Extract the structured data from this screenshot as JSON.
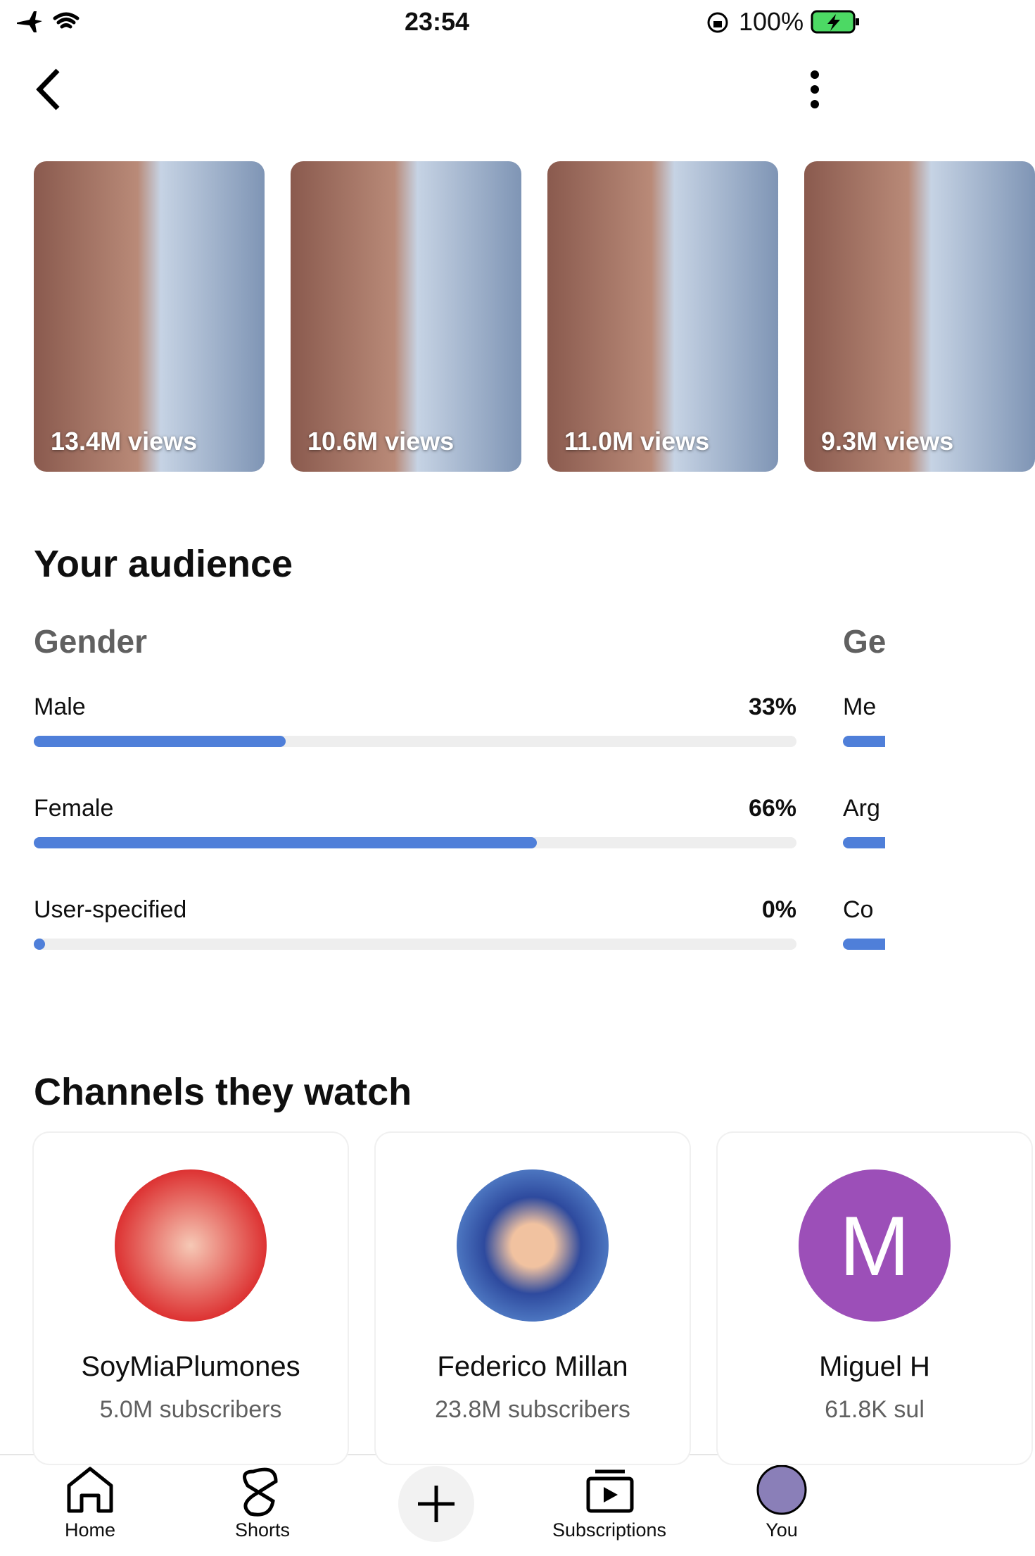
{
  "status_bar": {
    "time": "23:54",
    "battery": "100%"
  },
  "videos": [
    {
      "views": "13.4M views"
    },
    {
      "views": "10.6M views"
    },
    {
      "views": "11.0M views"
    },
    {
      "views": "9.3M views"
    }
  ],
  "audience": {
    "title": "Your audience",
    "gender": {
      "title": "Gender",
      "rows": [
        {
          "label": "Male",
          "value": 33,
          "value_label": "33%"
        },
        {
          "label": "Female",
          "value": 66,
          "value_label": "66%"
        },
        {
          "label": "User-specified",
          "value": 0,
          "value_label": "0%"
        }
      ]
    },
    "next_card": {
      "title": "Ge",
      "rows": [
        "Me",
        "Arg",
        "Co"
      ]
    }
  },
  "channels": {
    "title": "Channels they watch",
    "items": [
      {
        "name": "SoyMiaPlumones",
        "subscribers": "5.0M subscribers"
      },
      {
        "name": "Federico Millan",
        "subscribers": "23.8M subscribers"
      },
      {
        "name": "Miguel H",
        "subscribers": "61.8K sul",
        "initial": "M"
      }
    ]
  },
  "nav": [
    "Home",
    "Shorts",
    "Subscriptions",
    "You"
  ]
}
